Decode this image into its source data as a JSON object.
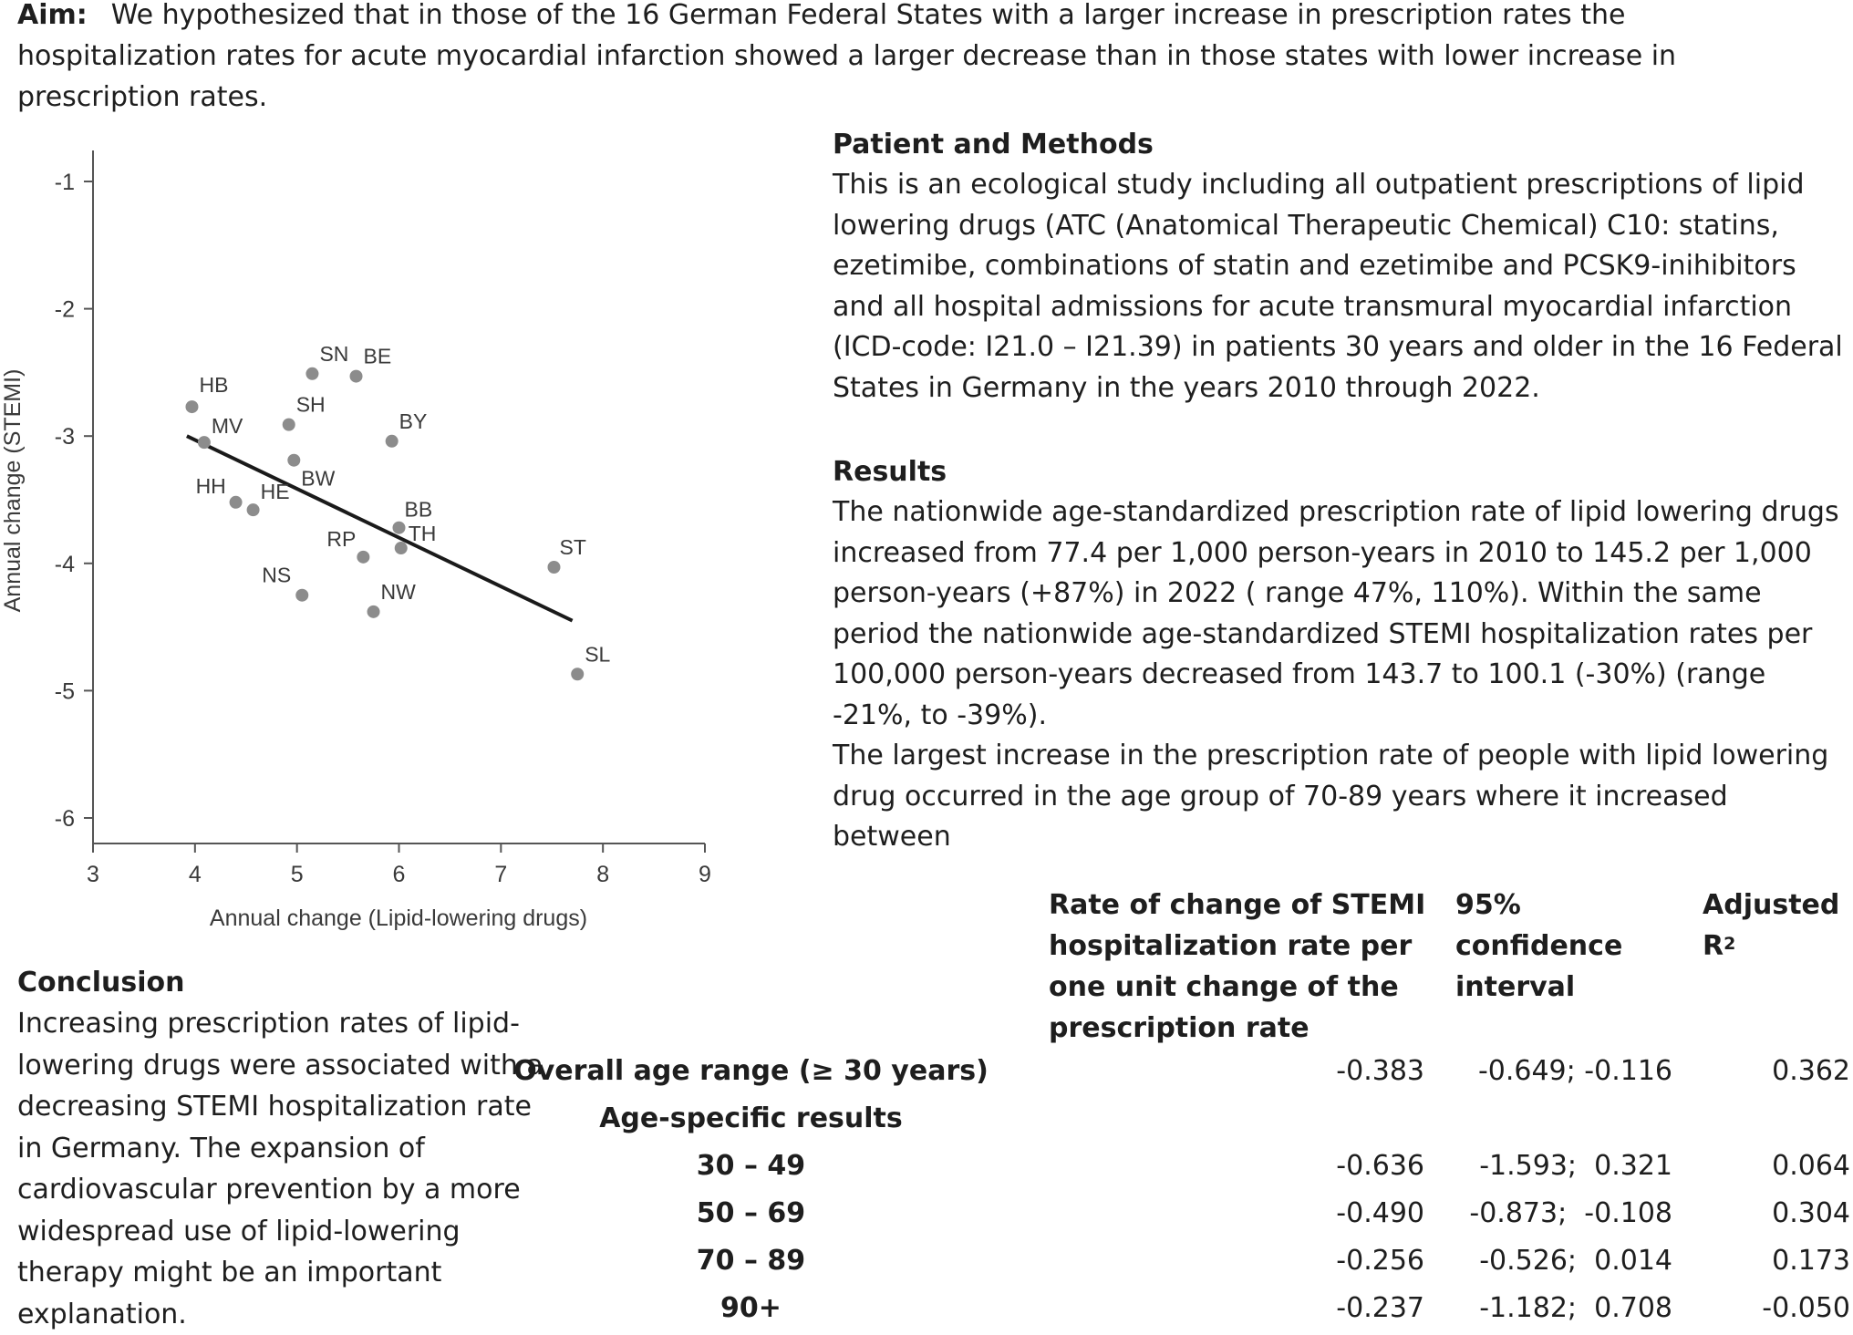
{
  "aim": {
    "label": "Aim",
    "text": "We hypothesized that in those of the 16 German Federal States with a larger increase in prescription rates the hospitalization rates for acute myocardial infarction showed a larger decrease than in those states with lower increase in prescription rates."
  },
  "chart_data": {
    "type": "scatter",
    "xlabel": "Annual change (Lipid-lowering drugs)",
    "ylabel": "Annual change (STEMI)",
    "xlim": [
      3,
      9
    ],
    "ylim": [
      -6,
      -1
    ],
    "xticks": [
      3,
      4,
      5,
      6,
      7,
      8,
      9
    ],
    "yticks": [
      -1,
      -2,
      -3,
      -4,
      -5,
      -6
    ],
    "grid": false,
    "points": [
      {
        "label": "HB",
        "x": 3.97,
        "y": -2.77
      },
      {
        "label": "MV",
        "x": 4.09,
        "y": -3.05
      },
      {
        "label": "SN",
        "x": 5.15,
        "y": -2.51
      },
      {
        "label": "BE",
        "x": 5.58,
        "y": -2.53
      },
      {
        "label": "SH",
        "x": 4.92,
        "y": -2.91
      },
      {
        "label": "BY",
        "x": 5.93,
        "y": -3.04
      },
      {
        "label": "BW",
        "x": 4.97,
        "y": -3.19
      },
      {
        "label": "HH",
        "x": 4.4,
        "y": -3.52
      },
      {
        "label": "HE",
        "x": 4.57,
        "y": -3.58
      },
      {
        "label": "BB",
        "x": 6.0,
        "y": -3.72
      },
      {
        "label": "TH",
        "x": 6.02,
        "y": -3.88
      },
      {
        "label": "RP",
        "x": 5.65,
        "y": -3.95
      },
      {
        "label": "ST",
        "x": 7.52,
        "y": -4.03
      },
      {
        "label": "NS",
        "x": 5.05,
        "y": -4.25
      },
      {
        "label": "NW",
        "x": 5.75,
        "y": -4.38
      },
      {
        "label": "SL",
        "x": 7.75,
        "y": -4.87
      }
    ],
    "fit_line": {
      "x": [
        3.92,
        7.7
      ],
      "y": [
        -3.0,
        -4.45
      ]
    }
  },
  "methods": {
    "heading": "Patient and Methods",
    "text": "This is an ecological study including all outpatient prescriptions of lipid lowering drugs (ATC (Anatomical Therapeutic Chemical) C10: statins, ezetimibe, combinations of statin and ezetimibe and PCSK9-inihibitors and all hospital admissions for acute transmural myocardial infarction (ICD-code: I21.0 – I21.39) in patients 30 years and older in the 16 Federal States in Germany in the years 2010 through 2022."
  },
  "results": {
    "heading": "Results",
    "para1": "The nationwide age-standardized prescription rate of lipid lowering drugs increased from 77.4 per 1,000 person-years in 2010 to 145.2 per 1,000 person-years (+87%) in 2022 ( range 47%, 110%). Within the same period the nationwide age-standardized STEMI hospitalization rates per 100,000 person-years decreased from 143.7 to 100.1 (-30%) (range -21%, to -39%).",
    "para2": "The largest increase in the prescription rate of people with lipid lowering drug occurred in the age group of 70-89 years where it increased between"
  },
  "conclusion": {
    "heading": "Conclusion",
    "text": "Increasing prescription rates of lipid-lowering drugs were associated with a decreasing STEMI hospitalization rate in Germany. The expansion of cardiovascular prevention by a more widespread use of lipid-lowering therapy might be an important explanation."
  },
  "table": {
    "headers": {
      "rate": "Rate of change of STEMI hospitalization rate per one unit change of the prescription rate",
      "ci": "95% confidence interval",
      "r2": "Adjusted R",
      "r2_sup": "2"
    },
    "rows": [
      {
        "label": "Overall age range (≥ 30 years)",
        "rate": "-0.383",
        "ci": "-0.649; -0.116",
        "r2": "0.362"
      },
      {
        "label": "Age-specific results",
        "rate": "",
        "ci": "",
        "r2": ""
      },
      {
        "label": "30 – 49",
        "rate": "-0.636",
        "ci": "-1.593;  0.321",
        "r2": "0.064"
      },
      {
        "label": "50 – 69",
        "rate": "-0.490",
        "ci": "-0.873;  -0.108",
        "r2": "0.304"
      },
      {
        "label": "70 – 89",
        "rate": "-0.256",
        "ci": "-0.526;  0.014",
        "r2": "0.173"
      },
      {
        "label": "90+",
        "rate": "-0.237",
        "ci": "-1.182;  0.708",
        "r2": "-0.050"
      }
    ]
  }
}
